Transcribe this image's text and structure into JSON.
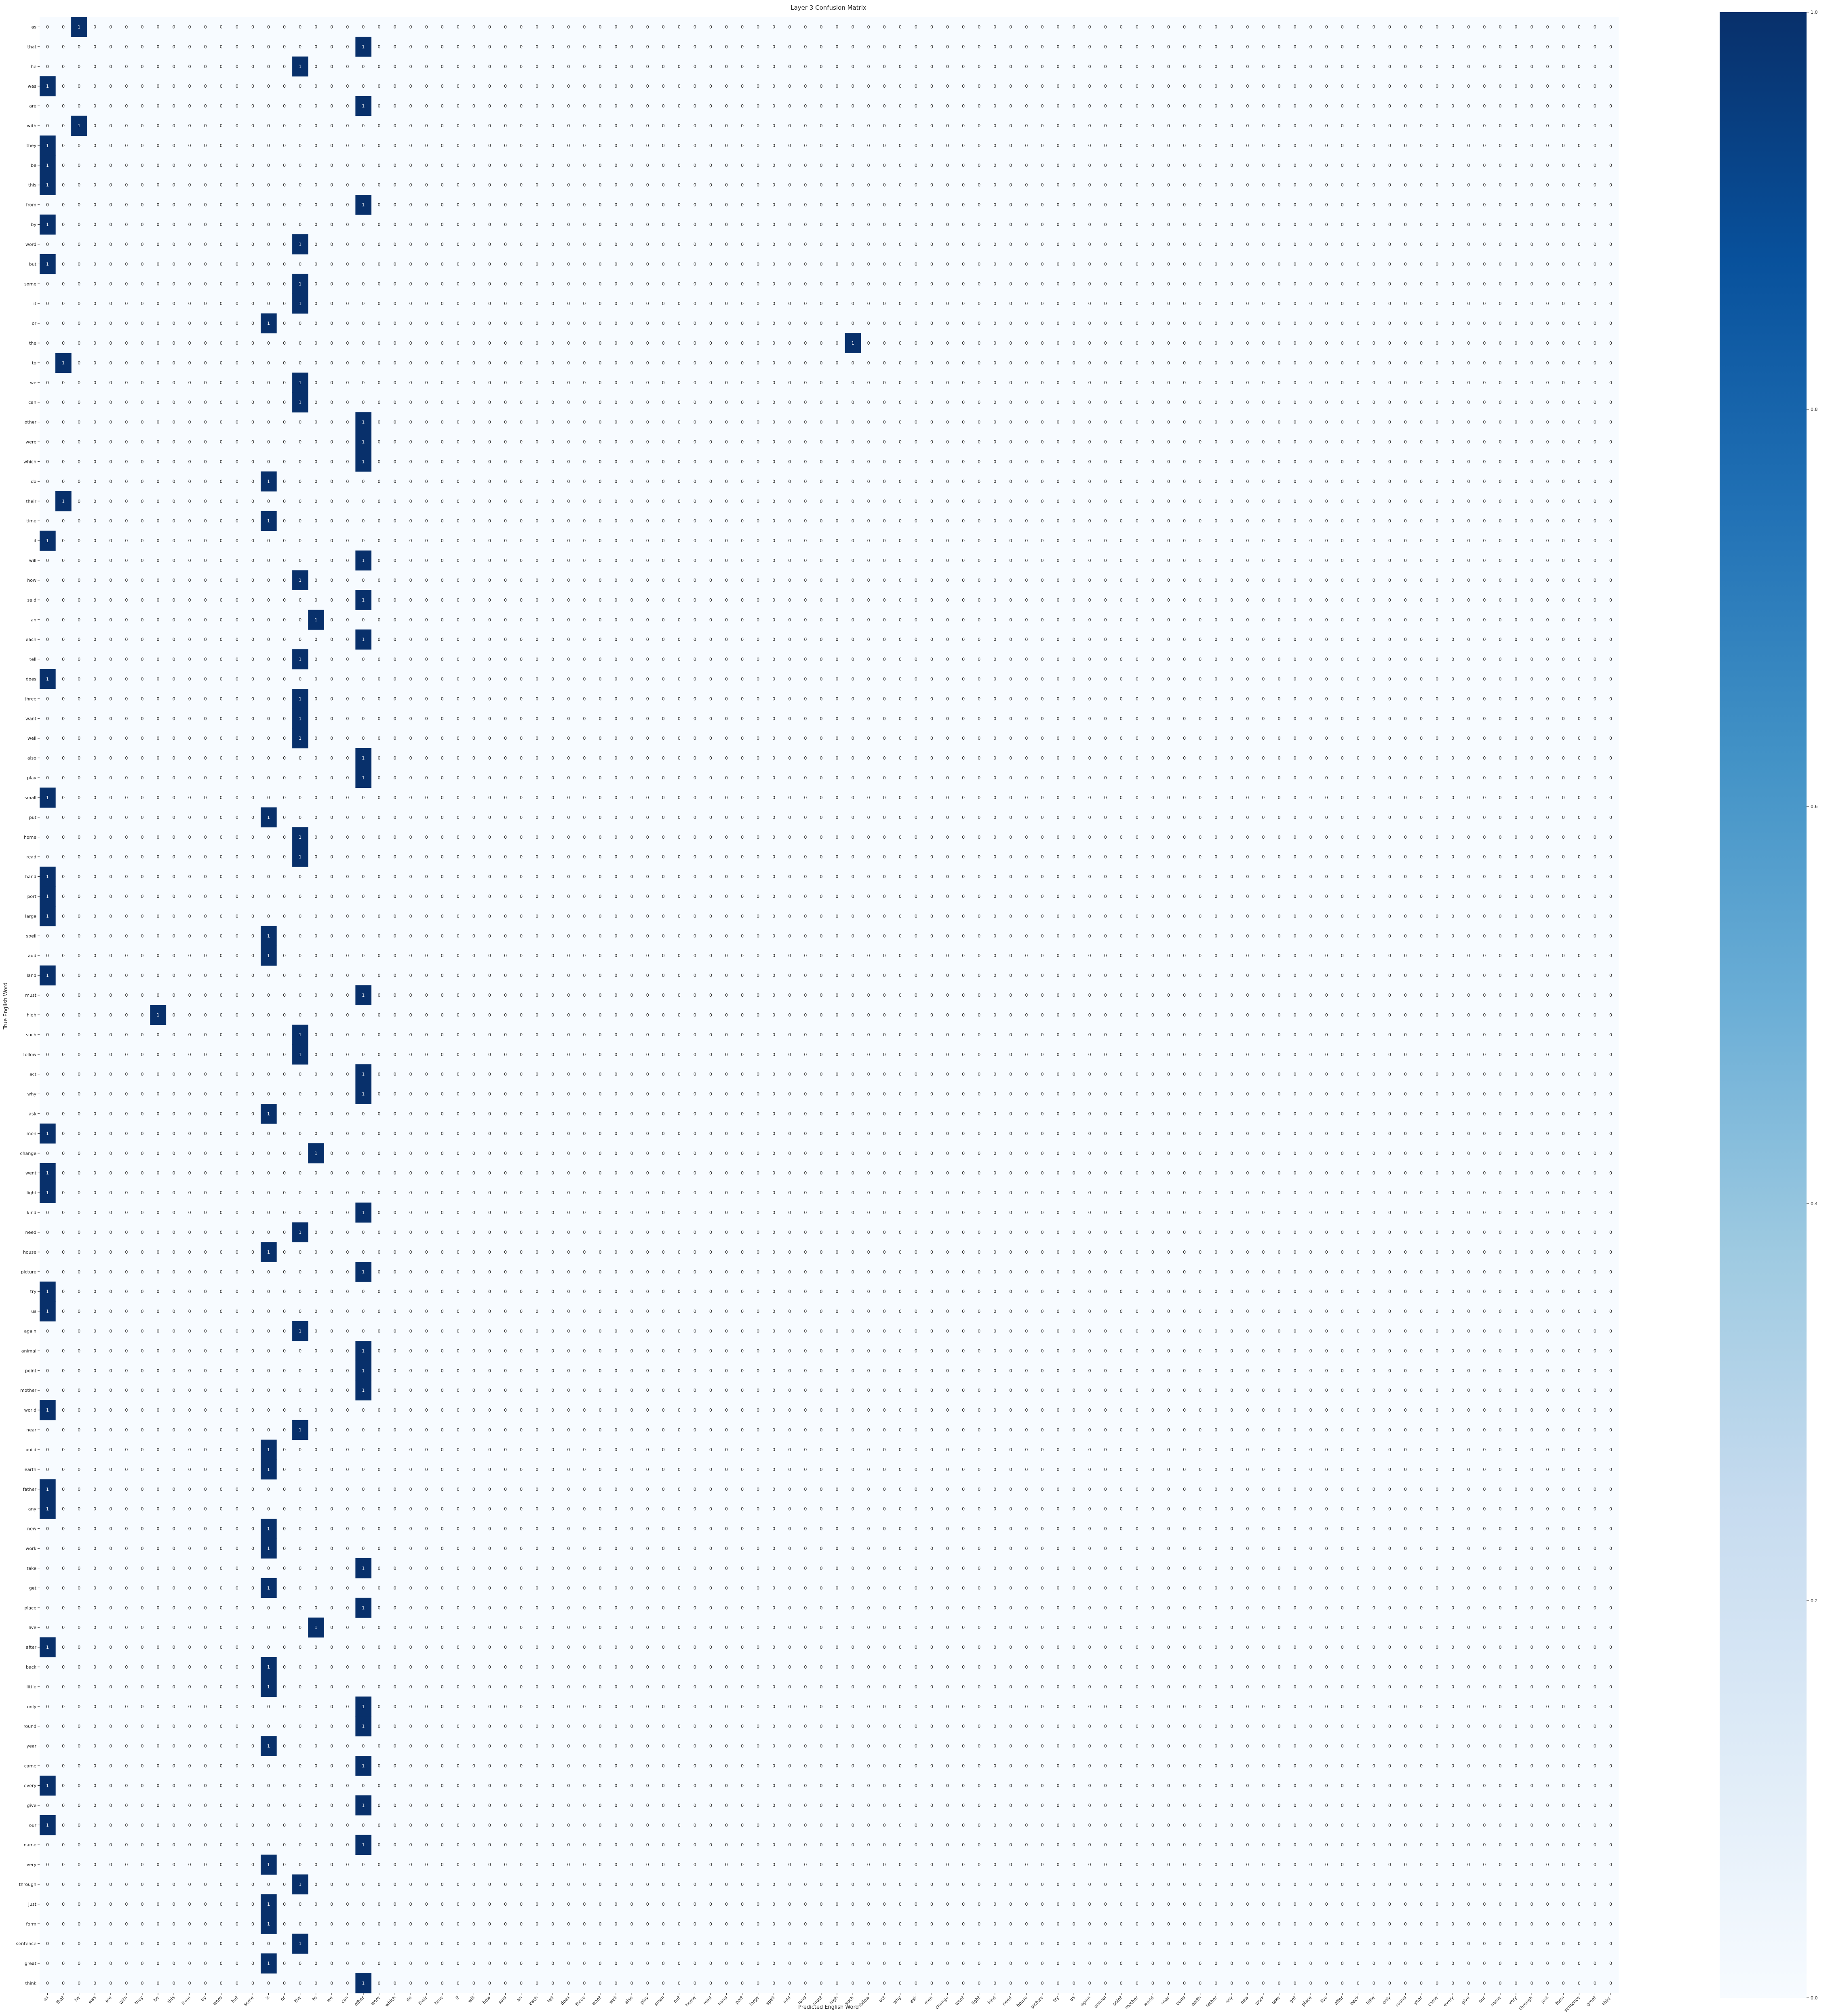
{
  "chart_data": {
    "type": "heatmap",
    "title": "Layer 3 Confusion Matrix",
    "xlabel": "Predicted English Word",
    "ylabel": "True English Word",
    "x_labels": [
      "as",
      "that",
      "he",
      "was",
      "are",
      "with",
      "they",
      "be",
      "this",
      "from",
      "by",
      "word",
      "but",
      "some",
      "it",
      "or",
      "the",
      "to",
      "we",
      "can",
      "other",
      "were",
      "which",
      "do",
      "their",
      "time",
      "if",
      "will",
      "how",
      "said",
      "an",
      "each",
      "tell",
      "does",
      "three",
      "want",
      "well",
      "also",
      "play",
      "small",
      "put",
      "home",
      "read",
      "hand",
      "port",
      "large",
      "spell",
      "add",
      "land",
      "must",
      "high",
      "such",
      "follow",
      "act",
      "why",
      "ask",
      "men",
      "change",
      "went",
      "light",
      "kind",
      "need",
      "house",
      "picture",
      "try",
      "us",
      "again",
      "animal",
      "point",
      "mother",
      "world",
      "near",
      "build",
      "earth",
      "father",
      "any",
      "new",
      "work",
      "take",
      "get",
      "place",
      "live",
      "after",
      "back",
      "little",
      "only",
      "round",
      "year",
      "came",
      "every",
      "give",
      "our",
      "name",
      "very",
      "through",
      "just",
      "form",
      "sentence",
      "great",
      "think"
    ],
    "y_labels": [
      "as",
      "that",
      "he",
      "was",
      "are",
      "with",
      "they",
      "be",
      "this",
      "from",
      "by",
      "word",
      "but",
      "some",
      "it",
      "or",
      "the",
      "to",
      "we",
      "can",
      "other",
      "were",
      "which",
      "do",
      "their",
      "time",
      "if",
      "will",
      "how",
      "said",
      "an",
      "each",
      "tell",
      "does",
      "three",
      "want",
      "well",
      "also",
      "play",
      "small",
      "put",
      "home",
      "read",
      "hand",
      "port",
      "large",
      "spell",
      "add",
      "land",
      "must",
      "high",
      "such",
      "follow",
      "act",
      "why",
      "ask",
      "men",
      "change",
      "went",
      "light",
      "kind",
      "need",
      "house",
      "picture",
      "try",
      "us",
      "again",
      "animal",
      "point",
      "mother",
      "world",
      "near",
      "build",
      "earth",
      "father",
      "any",
      "new",
      "work",
      "take",
      "get",
      "place",
      "live",
      "after",
      "back",
      "little",
      "only",
      "round",
      "year",
      "came",
      "every",
      "give",
      "our",
      "name",
      "very",
      "through",
      "just",
      "form",
      "sentence",
      "great",
      "think"
    ],
    "ones": [
      [
        0,
        2
      ],
      [
        1,
        20
      ],
      [
        2,
        16
      ],
      [
        3,
        0
      ],
      [
        4,
        20
      ],
      [
        5,
        2
      ],
      [
        6,
        0
      ],
      [
        7,
        0
      ],
      [
        8,
        0
      ],
      [
        9,
        20
      ],
      [
        10,
        0
      ],
      [
        11,
        16
      ],
      [
        12,
        0
      ],
      [
        13,
        16
      ],
      [
        14,
        16
      ],
      [
        15,
        14
      ],
      [
        16,
        51
      ],
      [
        17,
        1
      ],
      [
        18,
        16
      ],
      [
        19,
        16
      ],
      [
        20,
        20
      ],
      [
        21,
        20
      ],
      [
        22,
        20
      ],
      [
        23,
        14
      ],
      [
        24,
        1
      ],
      [
        25,
        14
      ],
      [
        26,
        0
      ],
      [
        27,
        20
      ],
      [
        28,
        16
      ],
      [
        29,
        20
      ],
      [
        30,
        17
      ],
      [
        31,
        20
      ],
      [
        32,
        16
      ],
      [
        33,
        0
      ],
      [
        34,
        16
      ],
      [
        35,
        16
      ],
      [
        36,
        16
      ],
      [
        37,
        20
      ],
      [
        38,
        20
      ],
      [
        39,
        0
      ],
      [
        40,
        14
      ],
      [
        41,
        16
      ],
      [
        42,
        16
      ],
      [
        43,
        0
      ],
      [
        44,
        0
      ],
      [
        45,
        0
      ],
      [
        46,
        14
      ],
      [
        47,
        14
      ],
      [
        48,
        0
      ],
      [
        49,
        20
      ],
      [
        50,
        7
      ],
      [
        51,
        16
      ],
      [
        52,
        16
      ],
      [
        53,
        20
      ],
      [
        54,
        20
      ],
      [
        55,
        14
      ],
      [
        56,
        0
      ],
      [
        57,
        17
      ],
      [
        58,
        0
      ],
      [
        59,
        0
      ],
      [
        60,
        20
      ],
      [
        61,
        16
      ],
      [
        62,
        14
      ],
      [
        63,
        20
      ],
      [
        64,
        0
      ],
      [
        65,
        0
      ],
      [
        66,
        16
      ],
      [
        67,
        20
      ],
      [
        68,
        20
      ],
      [
        69,
        20
      ],
      [
        70,
        0
      ],
      [
        71,
        16
      ],
      [
        72,
        14
      ],
      [
        73,
        14
      ],
      [
        74,
        0
      ],
      [
        75,
        0
      ],
      [
        76,
        14
      ],
      [
        77,
        14
      ],
      [
        78,
        20
      ],
      [
        79,
        14
      ],
      [
        80,
        20
      ],
      [
        81,
        17
      ],
      [
        82,
        0
      ],
      [
        83,
        14
      ],
      [
        84,
        14
      ],
      [
        85,
        20
      ],
      [
        86,
        20
      ],
      [
        87,
        14
      ],
      [
        88,
        20
      ],
      [
        89,
        0
      ],
      [
        90,
        20
      ],
      [
        91,
        0
      ],
      [
        92,
        20
      ],
      [
        93,
        14
      ],
      [
        94,
        16
      ],
      [
        95,
        14
      ],
      [
        96,
        14
      ],
      [
        97,
        16
      ],
      [
        98,
        14
      ],
      [
        99,
        20
      ]
    ],
    "cell_value_default": 0,
    "cell_value_hit": 1,
    "colorbar": {
      "min": 0.0,
      "max": 1.0,
      "ticks": [
        0.0,
        0.2,
        0.4,
        0.6,
        0.8,
        1.0
      ],
      "tick_labels": [
        "0.0",
        "0.2",
        "0.4",
        "0.6",
        "0.8",
        "1.0"
      ],
      "colormap": "Blues"
    },
    "colors": {
      "low": "#f7fbff",
      "high": "#08306b",
      "text_dark": "#262626",
      "text_light": "#ffffff"
    },
    "grid": false
  }
}
